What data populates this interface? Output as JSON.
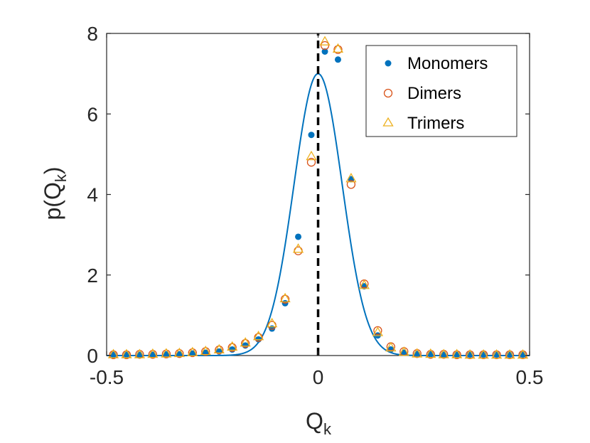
{
  "chart_data": {
    "type": "scatter",
    "xlabel": "Q",
    "xlabel_sub": "k",
    "ylabel": "p(Q",
    "ylabel_sub": "k",
    "ylabel_close": ")",
    "xlim": [
      -0.5,
      0.5
    ],
    "ylim": [
      0,
      8
    ],
    "xticks": [
      {
        "value": -0.5,
        "label": "-0.5"
      },
      {
        "value": 0,
        "label": "0"
      },
      {
        "value": 0.5,
        "label": "0.5"
      }
    ],
    "yticks": [
      {
        "value": 0,
        "label": "0"
      },
      {
        "value": 2,
        "label": "2"
      },
      {
        "value": 4,
        "label": "4"
      },
      {
        "value": 6,
        "label": "6"
      },
      {
        "value": 8,
        "label": "8"
      }
    ],
    "grid": false,
    "legend_position": "top-right",
    "colors": {
      "monomers": "#0072BD",
      "dimers": "#D95319",
      "trimers": "#EDB120",
      "fit": "#0072BD",
      "vline": "#000000"
    },
    "reference_line": {
      "x": 0,
      "style": "dashed"
    },
    "fit_curve": {
      "type": "gaussian",
      "mean": 0,
      "sigma": 0.057,
      "peak": 7.0
    },
    "series": [
      {
        "name": "Monomers",
        "marker": "dot",
        "x": [
          -0.484,
          -0.453,
          -0.422,
          -0.391,
          -0.359,
          -0.328,
          -0.297,
          -0.266,
          -0.234,
          -0.203,
          -0.172,
          -0.141,
          -0.109,
          -0.078,
          -0.047,
          -0.016,
          0.016,
          0.047,
          0.078,
          0.109,
          0.141,
          0.172,
          0.203,
          0.234,
          0.266,
          0.297,
          0.328,
          0.359,
          0.391,
          0.422,
          0.453,
          0.484
        ],
        "y": [
          0.02,
          0.02,
          0.02,
          0.02,
          0.03,
          0.03,
          0.05,
          0.07,
          0.1,
          0.15,
          0.25,
          0.4,
          0.67,
          1.3,
          2.95,
          5.48,
          7.55,
          7.35,
          4.38,
          1.72,
          0.5,
          0.15,
          0.07,
          0.04,
          0.03,
          0.02,
          0.02,
          0.02,
          0.02,
          0.02,
          0.02,
          0.02
        ]
      },
      {
        "name": "Dimers",
        "marker": "circle",
        "x": [
          -0.484,
          -0.453,
          -0.422,
          -0.391,
          -0.359,
          -0.328,
          -0.297,
          -0.266,
          -0.234,
          -0.203,
          -0.172,
          -0.141,
          -0.109,
          -0.078,
          -0.047,
          -0.016,
          0.016,
          0.047,
          0.078,
          0.109,
          0.141,
          0.172,
          0.203,
          0.234,
          0.266,
          0.297,
          0.328,
          0.359,
          0.391,
          0.422,
          0.453,
          0.484
        ],
        "y": [
          0.02,
          0.02,
          0.03,
          0.03,
          0.04,
          0.05,
          0.07,
          0.1,
          0.14,
          0.2,
          0.3,
          0.45,
          0.75,
          1.4,
          2.6,
          4.8,
          7.7,
          7.6,
          4.25,
          1.78,
          0.62,
          0.22,
          0.1,
          0.05,
          0.03,
          0.03,
          0.02,
          0.02,
          0.02,
          0.02,
          0.02,
          0.02
        ]
      },
      {
        "name": "Trimers",
        "marker": "triangle",
        "x": [
          -0.484,
          -0.453,
          -0.422,
          -0.391,
          -0.359,
          -0.328,
          -0.297,
          -0.266,
          -0.234,
          -0.203,
          -0.172,
          -0.141,
          -0.109,
          -0.078,
          -0.047,
          -0.016,
          0.016,
          0.047,
          0.078,
          0.109,
          0.141,
          0.172,
          0.203,
          0.234,
          0.266,
          0.297,
          0.328,
          0.359,
          0.391,
          0.422,
          0.453,
          0.484
        ],
        "y": [
          0.03,
          0.03,
          0.03,
          0.04,
          0.05,
          0.06,
          0.08,
          0.11,
          0.15,
          0.22,
          0.32,
          0.48,
          0.8,
          1.42,
          2.65,
          4.95,
          7.8,
          7.62,
          4.4,
          1.75,
          0.58,
          0.2,
          0.09,
          0.05,
          0.04,
          0.03,
          0.03,
          0.02,
          0.02,
          0.02,
          0.02,
          0.02
        ]
      }
    ]
  }
}
